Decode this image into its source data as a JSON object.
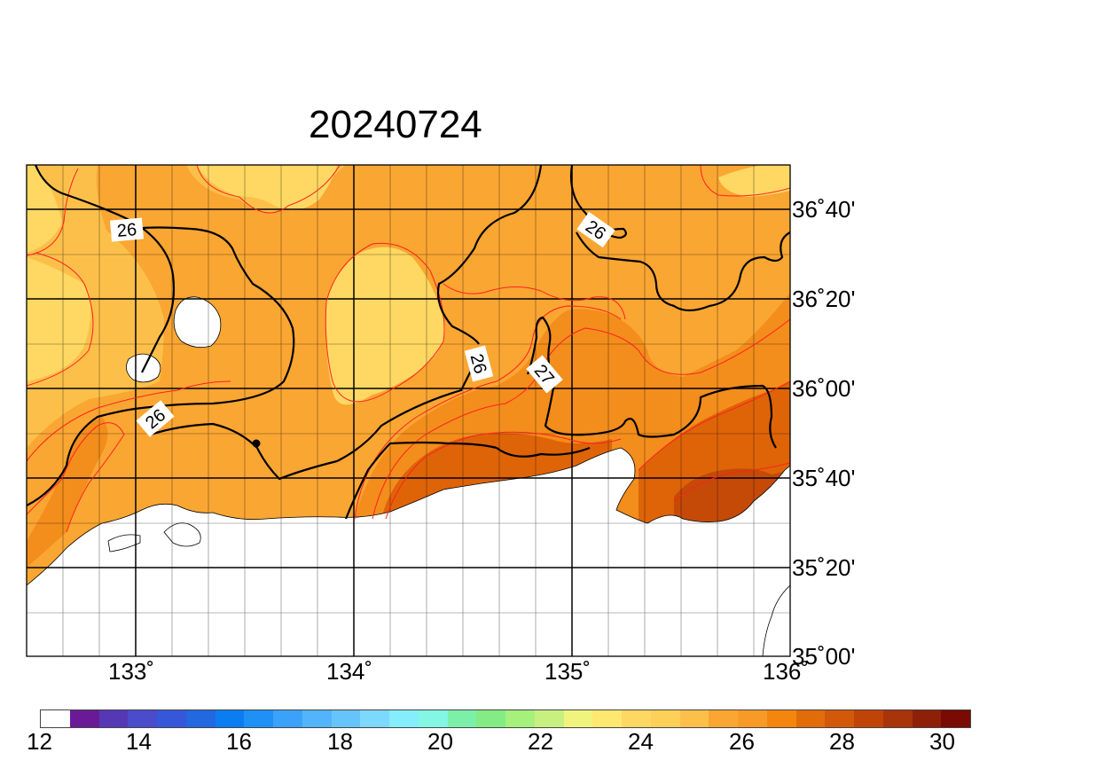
{
  "title": "20240724",
  "lat_labels": [
    "36˚40'",
    "36˚20'",
    "36˚00'",
    "35˚40'",
    "35˚20'",
    "35˚00'"
  ],
  "lon_labels": [
    "133˚",
    "134˚",
    "135˚",
    "136˚"
  ],
  "contour_labels": [
    "26",
    "26",
    "26",
    "26",
    "27"
  ],
  "colorbar": {
    "ticks": [
      "12",
      "14",
      "16",
      "18",
      "20",
      "22",
      "24",
      "26",
      "28",
      "30"
    ],
    "colors": [
      "#ffffff",
      "#6a1a96",
      "#5638b4",
      "#4a4ccc",
      "#3658d8",
      "#2268e0",
      "#0a7ef0",
      "#1e90f6",
      "#3aa2f8",
      "#52b4fa",
      "#66c4fa",
      "#7cd8fc",
      "#84eefc",
      "#84f6e4",
      "#7cf0a8",
      "#84ec84",
      "#a6f07c",
      "#c8f080",
      "#f0f47c",
      "#fee870",
      "#fed862",
      "#fed058",
      "#fcc04a",
      "#faa632",
      "#f89a28",
      "#f4860e",
      "#e26c0a",
      "#d4580a",
      "#c04408",
      "#a8340a",
      "#8e2008",
      "#7a0a04"
    ]
  },
  "map_colors": {
    "sst_24_25": "#fed862",
    "sst_25_26": "#fcc04a",
    "sst_26_27": "#faa632",
    "sst_27_28": "#f38d1c",
    "sst_28_29": "#de6407",
    "sst_29_30": "#c54a08",
    "land": "#ffffff",
    "contour_05": "#ff2020",
    "contour_1": "#000000"
  }
}
